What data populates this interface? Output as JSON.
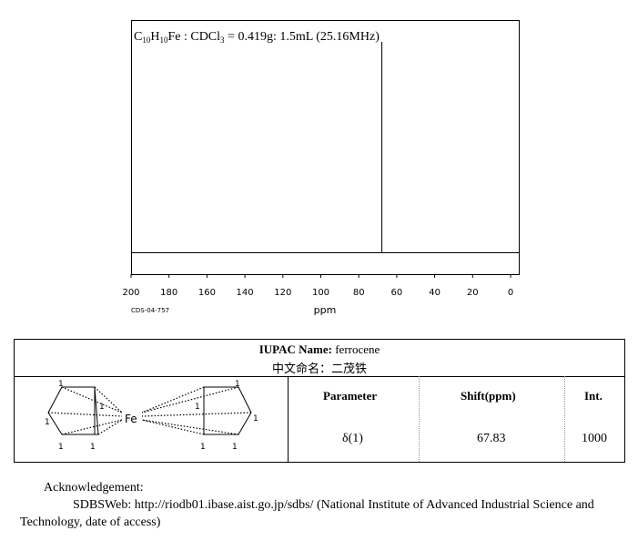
{
  "chart_data": {
    "type": "line",
    "title": "C10H10Fe : CDCl3 = 0.419g: 1.5mL (25.16MHz)",
    "title_parts": [
      "C",
      "10",
      "H",
      "10",
      "Fe : CDCl",
      "3",
      " = 0.419g: 1.5mL (25.16MHz)"
    ],
    "xlabel": "ppm",
    "xlim": [
      200,
      0
    ],
    "x_ticks": [
      "200",
      "180",
      "160",
      "140",
      "120",
      "100",
      "80",
      "60",
      "40",
      "20",
      "0"
    ],
    "peaks": [
      {
        "x": 67.83,
        "intensity": 1000
      }
    ],
    "spectrum_code": "CDS-04-757"
  },
  "table": {
    "iupac_label": "IUPAC Name:",
    "iupac_value": "ferrocene",
    "chinese_name": "中文命名：二茂铁",
    "headers": [
      "Parameter",
      "Shift(ppm)",
      "Int."
    ],
    "rows": [
      [
        "δ(1)",
        "67.83",
        "1000"
      ]
    ],
    "structure_atom": "Fe",
    "structure_numbers": [
      "1",
      "1",
      "1",
      "1",
      "1",
      "1",
      "1",
      "1",
      "1",
      "1"
    ]
  },
  "acknowledgement": {
    "heading": "Acknowledgement:",
    "text": "SDBSWeb: http://riodb01.ibase.aist.go.jp/sdbs/ (National Institute of Advanced Industrial Science and",
    "text2": "Technology, date of access)"
  }
}
